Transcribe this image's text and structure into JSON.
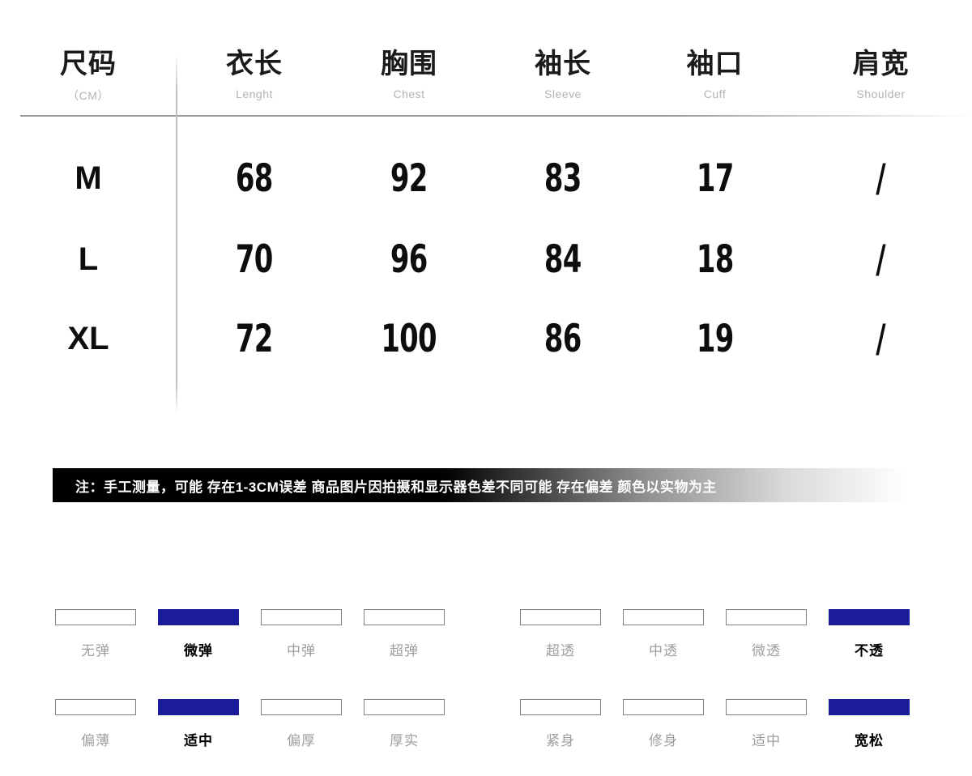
{
  "chart_data": {
    "type": "table",
    "title": "尺码表 (CM)",
    "columns": [
      {
        "label": "尺码",
        "sub": "（CM）"
      },
      {
        "label": "衣长",
        "sub": "Lenght"
      },
      {
        "label": "胸围",
        "sub": "Chest"
      },
      {
        "label": "袖长",
        "sub": "Sleeve"
      },
      {
        "label": "袖口",
        "sub": "Cuff"
      },
      {
        "label": "肩宽",
        "sub": "Shoulder"
      }
    ],
    "rows": [
      {
        "size": "M",
        "values": [
          "68",
          "92",
          "83",
          "17",
          "/"
        ]
      },
      {
        "size": "L",
        "values": [
          "70",
          "96",
          "84",
          "18",
          "/"
        ]
      },
      {
        "size": "XL",
        "values": [
          "72",
          "100",
          "86",
          "19",
          "/"
        ]
      }
    ]
  },
  "size_table": {
    "columns": [
      {
        "label": "尺码",
        "sub": "（CM）"
      },
      {
        "label": "衣长",
        "sub": "Lenght"
      },
      {
        "label": "胸围",
        "sub": "Chest"
      },
      {
        "label": "袖长",
        "sub": "Sleeve"
      },
      {
        "label": "袖口",
        "sub": "Cuff"
      },
      {
        "label": "肩宽",
        "sub": "Shoulder"
      }
    ],
    "rows": [
      {
        "size": "M",
        "values": [
          "68",
          "92",
          "83",
          "17",
          "/"
        ]
      },
      {
        "size": "L",
        "values": [
          "70",
          "96",
          "84",
          "18",
          "/"
        ]
      },
      {
        "size": "XL",
        "values": [
          "72",
          "100",
          "86",
          "19",
          "/"
        ]
      }
    ]
  },
  "note": {
    "text": "注：手工测量，可能 存在1-3CM误差 商品图片因拍摄和显示器色差不同可能 存在偏差 颜色以实物为主"
  },
  "attributes": {
    "rows": [
      {
        "groups": [
          {
            "items": [
              {
                "label": "无弹",
                "selected": false
              },
              {
                "label": "微弹",
                "selected": true
              },
              {
                "label": "中弹",
                "selected": false
              },
              {
                "label": "超弹",
                "selected": false
              }
            ]
          },
          {
            "items": [
              {
                "label": "超透",
                "selected": false
              },
              {
                "label": "中透",
                "selected": false
              },
              {
                "label": "微透",
                "selected": false
              },
              {
                "label": "不透",
                "selected": true
              }
            ]
          }
        ]
      },
      {
        "groups": [
          {
            "items": [
              {
                "label": "偏薄",
                "selected": false
              },
              {
                "label": "适中",
                "selected": true
              },
              {
                "label": "偏厚",
                "selected": false
              },
              {
                "label": "厚实",
                "selected": false
              }
            ]
          },
          {
            "items": [
              {
                "label": "紧身",
                "selected": false
              },
              {
                "label": "修身",
                "selected": false
              },
              {
                "label": "适中",
                "selected": false
              },
              {
                "label": "宽松",
                "selected": true
              }
            ]
          }
        ]
      }
    ]
  },
  "colors": {
    "accent_blue": "#1c1c99",
    "note_bar_left": "#000000",
    "muted_gray": "#9e9e9e"
  }
}
